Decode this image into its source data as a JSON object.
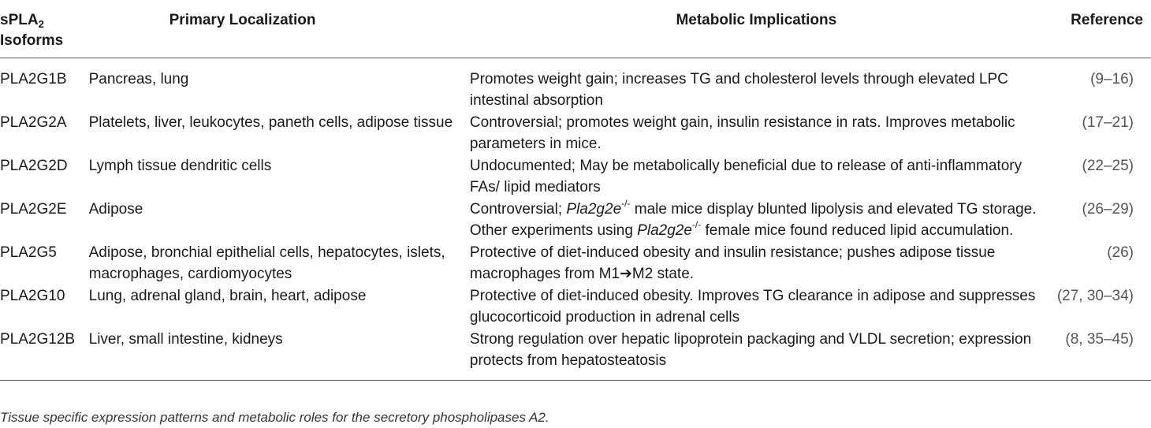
{
  "table": {
    "headers": {
      "isoform_main": "sPLA",
      "isoform_sub": "2",
      "isoform_line2": "Isoforms",
      "localization": "Primary Localization",
      "implications": "Metabolic Implications",
      "reference": "Reference"
    },
    "rows": [
      {
        "isoform": "PLA2G1B",
        "localization": "Pancreas, lung",
        "implications": "Promotes weight gain; increases TG and cholesterol levels through elevated LPC intestinal absorption",
        "reference": "(9–16)"
      },
      {
        "isoform": "PLA2G2A",
        "localization": "Platelets, liver, leukocytes, paneth cells, adipose tissue",
        "implications": "Controversial; promotes weight gain, insulin resistance in rats. Improves metabolic parameters in mice.",
        "reference": "(17–21)"
      },
      {
        "isoform": "PLA2G2D",
        "localization": "Lymph tissue dendritic cells",
        "implications": "Undocumented; May be metabolically beneficial due to release of anti-inflammatory FAs/ lipid mediators",
        "reference": "(22–25)"
      },
      {
        "isoform": "PLA2G2E",
        "localization": "Adipose",
        "implications_parts": {
          "p1": "Controversial; ",
          "gene1": "Pla2g2e",
          "sup1": "-/-",
          "p2": " male mice display blunted lipolysis and elevated TG storage. Other experiments using ",
          "gene2": "Pla2g2e",
          "sup2": "-/-",
          "p3": " female mice found reduced lipid accumulation."
        },
        "reference": "(26–29)"
      },
      {
        "isoform": "PLA2G5",
        "localization": "Adipose, bronchial epithelial cells, hepatocytes, islets, macrophages, cardiomyocytes",
        "implications": "Protective of diet-induced obesity and insulin resistance; pushes adipose tissue macrophages from M1➔M2 state.",
        "reference": "(26)"
      },
      {
        "isoform": "PLA2G10",
        "localization": "Lung, adrenal gland, brain, heart, adipose",
        "implications": "Protective of diet-induced obesity. Improves TG clearance in adipose and suppresses glucocorticoid production in adrenal cells",
        "reference": "(27, 30–34)"
      },
      {
        "isoform": "PLA2G12B",
        "localization": "Liver, small intestine, kidneys",
        "implications": "Strong regulation over hepatic lipoprotein packaging and VLDL secretion; expression protects from hepatosteatosis",
        "reference": "(8, 35–45)"
      }
    ]
  },
  "caption": "Tissue specific expression patterns and metabolic roles for the secretory phospholipases A2."
}
